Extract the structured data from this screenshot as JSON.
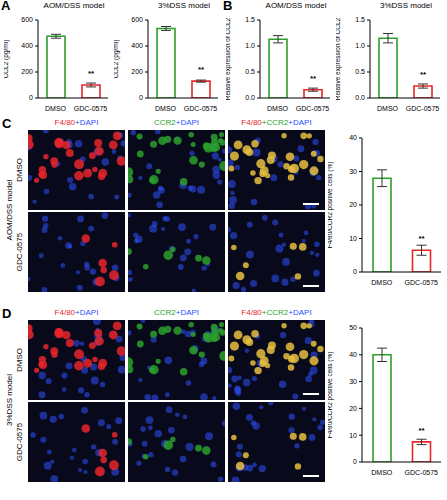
{
  "chart_data": [
    {
      "panel": "A",
      "type": "bar",
      "title": "AOM/DSS model",
      "y_label": "CCL2 (pg/ml)",
      "categories": [
        "DMSO",
        "GDC-0575"
      ],
      "values": [
        475,
        100
      ],
      "errors": [
        15,
        15
      ],
      "colors": [
        "#2ca02c",
        "#e8262a"
      ],
      "ylim": [
        0,
        600
      ],
      "yticks": [
        0,
        200,
        400,
        600
      ],
      "annotations": [
        {
          "category": "GDC-0575",
          "text": "**"
        }
      ]
    },
    {
      "panel": "A",
      "type": "bar",
      "title": "3%DSS model",
      "y_label": "CCL2 (pg/ml)",
      "categories": [
        "DMSO",
        "GDC-0575"
      ],
      "values": [
        535,
        130
      ],
      "errors": [
        15,
        8
      ],
      "colors": [
        "#2ca02c",
        "#e8262a"
      ],
      "ylim": [
        0,
        600
      ],
      "yticks": [
        0,
        200,
        400,
        600
      ],
      "annotations": [
        {
          "category": "GDC-0575",
          "text": "**"
        }
      ]
    },
    {
      "panel": "B",
      "type": "bar",
      "title": "AOM/DSS model",
      "y_label": "Relative expression of CCL2",
      "categories": [
        "DMSO",
        "GDC-0575"
      ],
      "values": [
        1.13,
        0.16
      ],
      "errors": [
        0.07,
        0.03
      ],
      "colors": [
        "#2ca02c",
        "#e8262a"
      ],
      "ylim": [
        0,
        1.5
      ],
      "yticks": [
        {
          "value": 0,
          "label": "0.0"
        },
        0.5,
        {
          "value": 1,
          "label": "1.0"
        },
        1.5
      ],
      "annotations": [
        {
          "category": "GDC-0575",
          "text": "**"
        }
      ]
    },
    {
      "panel": "B",
      "type": "bar",
      "title": "3%DSS model",
      "y_label": "Relative expression of CCL2",
      "categories": [
        "DMSO",
        "GDC-0575"
      ],
      "values": [
        1.15,
        0.23
      ],
      "errors": [
        0.09,
        0.04
      ],
      "colors": [
        "#2ca02c",
        "#e8262a"
      ],
      "ylim": [
        0,
        1.5
      ],
      "yticks": [
        {
          "value": 0,
          "label": "0.0"
        },
        0.5,
        {
          "value": 1,
          "label": "1.0"
        },
        1.5
      ],
      "annotations": [
        {
          "category": "GDC-0575",
          "text": "**"
        }
      ]
    },
    {
      "panel": "C",
      "type": "bar",
      "y_label": "F4/80/CCR2 positive cells (%)",
      "categories": [
        "DMSO",
        "GDC-0575"
      ],
      "values": [
        28,
        6.5
      ],
      "errors": [
        2.5,
        1.5
      ],
      "colors": [
        "#2ca02c",
        "#e8262a"
      ],
      "ylim": [
        0,
        40
      ],
      "yticks": [
        0,
        10,
        20,
        30,
        40
      ],
      "annotations": [
        {
          "category": "GDC-0575",
          "text": "**"
        }
      ]
    },
    {
      "panel": "D",
      "type": "bar",
      "y_label": "F4/80/CCR2 positive cells (%)",
      "categories": [
        "DMSO",
        "GDC-0575"
      ],
      "values": [
        40,
        7.5
      ],
      "errors": [
        2.5,
        1
      ],
      "colors": [
        "#2ca02c",
        "#e8262a"
      ],
      "ylim": [
        0,
        50
      ],
      "yticks": [
        0,
        10,
        20,
        30,
        40,
        50
      ],
      "annotations": [
        {
          "category": "GDC-0575",
          "text": "**"
        }
      ]
    }
  ],
  "micrographs": [
    {
      "panel": "C",
      "model": "AOM/DSS model",
      "rows": [
        "DMSO",
        "GDC-0575"
      ],
      "columns": [
        "F4/80+DAPI",
        "CCR2+DAPI",
        "F4/80+CCR2+DAPI"
      ]
    },
    {
      "panel": "D",
      "model": "3%DSS model",
      "rows": [
        "DMSO",
        "GDC-0575"
      ],
      "columns": [
        "F4/80+DAPI",
        "CCR2+DAPI",
        "F4/80+CCR2+DAPI"
      ]
    }
  ],
  "label_colors": {
    "F4/80": "#e8262a",
    "CCR2": "#2ca02c",
    "DAPI": "#3050ff"
  }
}
